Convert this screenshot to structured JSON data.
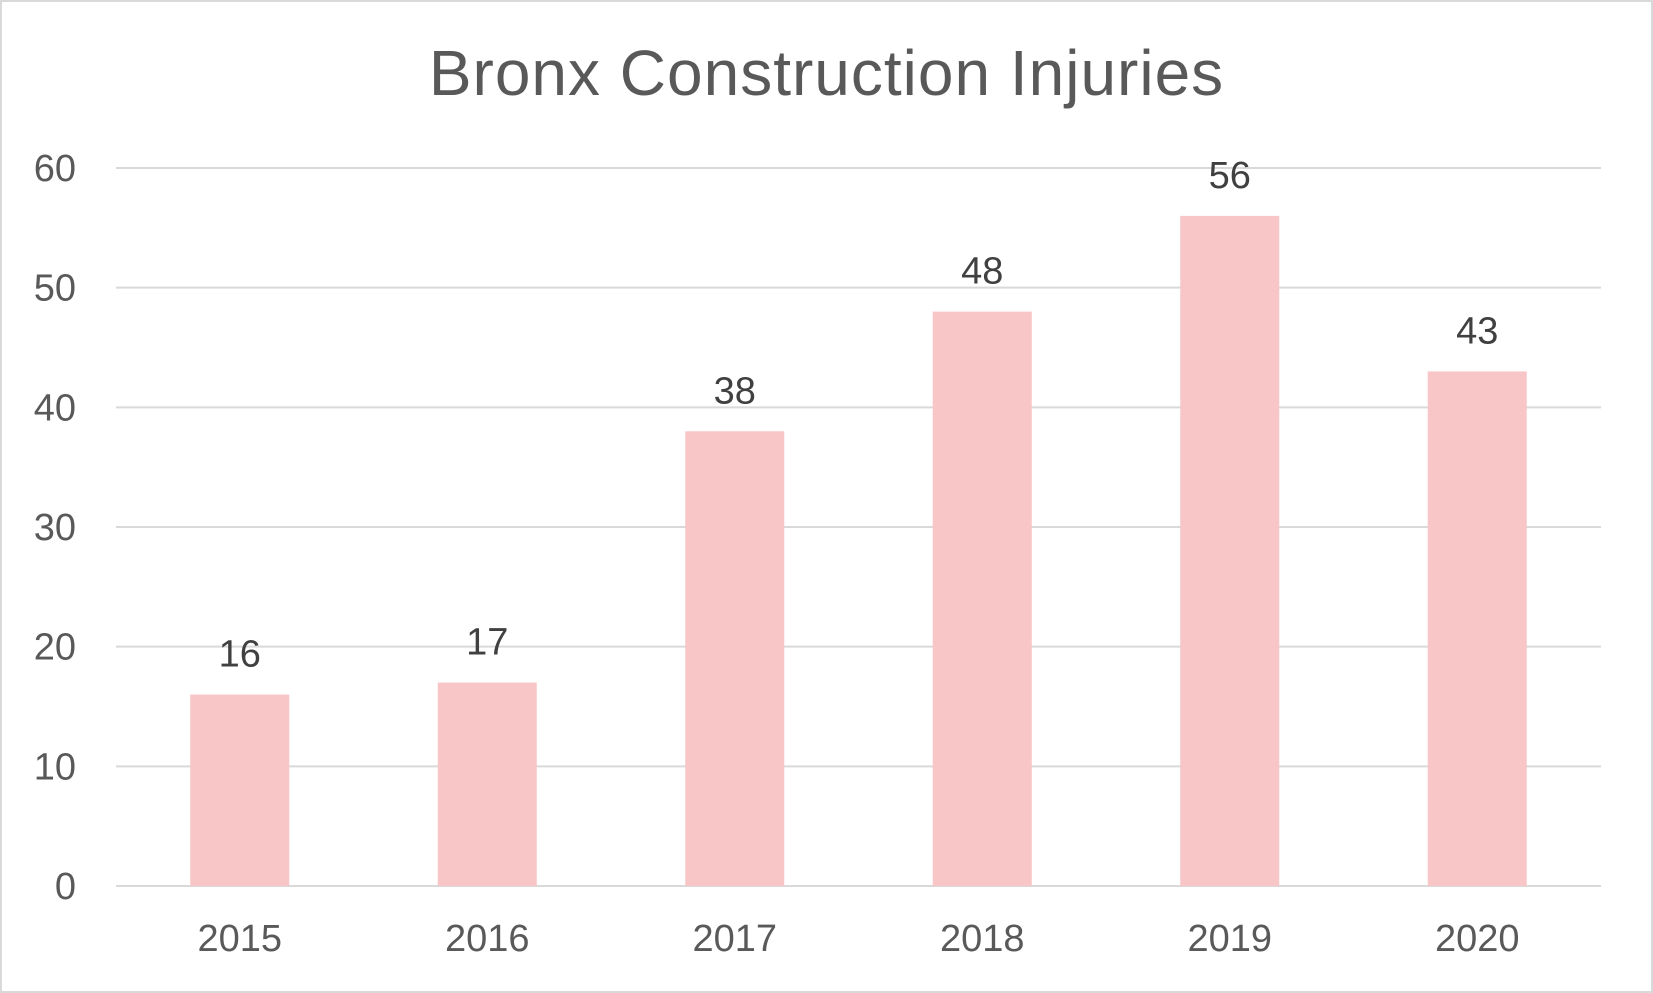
{
  "chart_data": {
    "type": "bar",
    "title": "Bronx Construction Injuries",
    "categories": [
      "2015",
      "2016",
      "2017",
      "2018",
      "2019",
      "2020"
    ],
    "values": [
      16,
      17,
      38,
      48,
      56,
      43
    ],
    "xlabel": "",
    "ylabel": "",
    "ylim": [
      0,
      60
    ],
    "yticks": [
      0,
      10,
      20,
      30,
      40,
      50,
      60
    ],
    "grid": true,
    "legend": "none",
    "bar_color": "#f8c6c6",
    "grid_color": "#d9d9d9",
    "text_color": "#595959"
  }
}
